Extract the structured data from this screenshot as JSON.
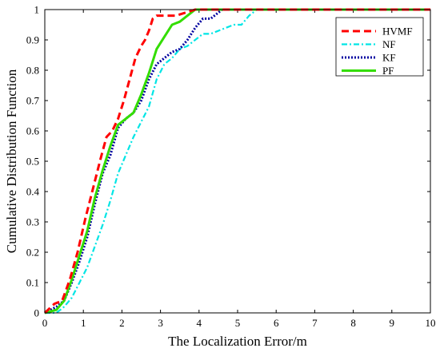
{
  "chart_data": {
    "type": "line",
    "title": "",
    "xlabel": "The Localization Error/m",
    "ylabel": "Cumulative Distribution Function",
    "xlim": [
      0,
      10
    ],
    "ylim": [
      0,
      1
    ],
    "xticks": [
      "0",
      "1",
      "2",
      "3",
      "4",
      "5",
      "6",
      "7",
      "8",
      "9",
      "10"
    ],
    "yticks": [
      "0",
      "0.1",
      "0.2",
      "0.3",
      "0.4",
      "0.5",
      "0.6",
      "0.7",
      "0.8",
      "0.9",
      "1"
    ],
    "grid": false,
    "legend_position": "top-right",
    "series": [
      {
        "name": "HVMF",
        "color": "#ff0000",
        "style": "dashed",
        "x": [
          0.0,
          0.25,
          0.45,
          0.65,
          0.85,
          1.05,
          1.25,
          1.45,
          1.6,
          1.75,
          1.9,
          2.05,
          2.2,
          2.35,
          2.5,
          2.6,
          2.7,
          2.8,
          2.9,
          3.1,
          3.4,
          3.9,
          10.0
        ],
        "y": [
          0.0,
          0.03,
          0.04,
          0.11,
          0.2,
          0.31,
          0.41,
          0.51,
          0.58,
          0.6,
          0.64,
          0.7,
          0.77,
          0.84,
          0.88,
          0.9,
          0.93,
          0.97,
          0.98,
          0.98,
          0.98,
          1.0,
          1.0
        ]
      },
      {
        "name": "NF",
        "color": "#00e5e5",
        "style": "dashdot",
        "x": [
          0.0,
          0.3,
          0.5,
          0.7,
          0.9,
          1.1,
          1.3,
          1.5,
          1.7,
          1.9,
          2.1,
          2.3,
          2.5,
          2.7,
          2.9,
          3.1,
          3.3,
          3.5,
          3.7,
          3.9,
          4.1,
          4.3,
          4.5,
          4.7,
          4.9,
          5.1,
          5.3,
          5.5,
          10.0
        ],
        "y": [
          0.0,
          0.0,
          0.02,
          0.05,
          0.1,
          0.15,
          0.22,
          0.29,
          0.37,
          0.46,
          0.52,
          0.58,
          0.63,
          0.68,
          0.77,
          0.82,
          0.84,
          0.87,
          0.88,
          0.9,
          0.92,
          0.92,
          0.93,
          0.94,
          0.95,
          0.95,
          0.98,
          1.0,
          1.0
        ]
      },
      {
        "name": "KF",
        "color": "#0000a0",
        "style": "dotted",
        "x": [
          0.0,
          0.3,
          0.5,
          0.7,
          0.9,
          1.1,
          1.3,
          1.5,
          1.7,
          1.9,
          2.1,
          2.3,
          2.5,
          2.7,
          2.9,
          3.1,
          3.3,
          3.5,
          3.7,
          3.9,
          4.1,
          4.3,
          4.5,
          4.6,
          10.0
        ],
        "y": [
          0.0,
          0.02,
          0.04,
          0.1,
          0.17,
          0.25,
          0.36,
          0.46,
          0.52,
          0.61,
          0.64,
          0.66,
          0.7,
          0.77,
          0.82,
          0.84,
          0.86,
          0.87,
          0.9,
          0.94,
          0.97,
          0.97,
          0.99,
          1.0,
          1.0
        ]
      },
      {
        "name": "PF",
        "color": "#33dd00",
        "style": "solid",
        "x": [
          0.0,
          0.3,
          0.5,
          0.7,
          0.9,
          1.1,
          1.3,
          1.5,
          1.7,
          1.9,
          2.1,
          2.3,
          2.5,
          2.7,
          2.9,
          3.1,
          3.3,
          3.5,
          3.7,
          3.9,
          10.0
        ],
        "y": [
          0.0,
          0.01,
          0.04,
          0.11,
          0.19,
          0.27,
          0.38,
          0.47,
          0.55,
          0.62,
          0.64,
          0.66,
          0.72,
          0.79,
          0.87,
          0.91,
          0.95,
          0.96,
          0.98,
          1.0,
          1.0
        ]
      }
    ]
  }
}
